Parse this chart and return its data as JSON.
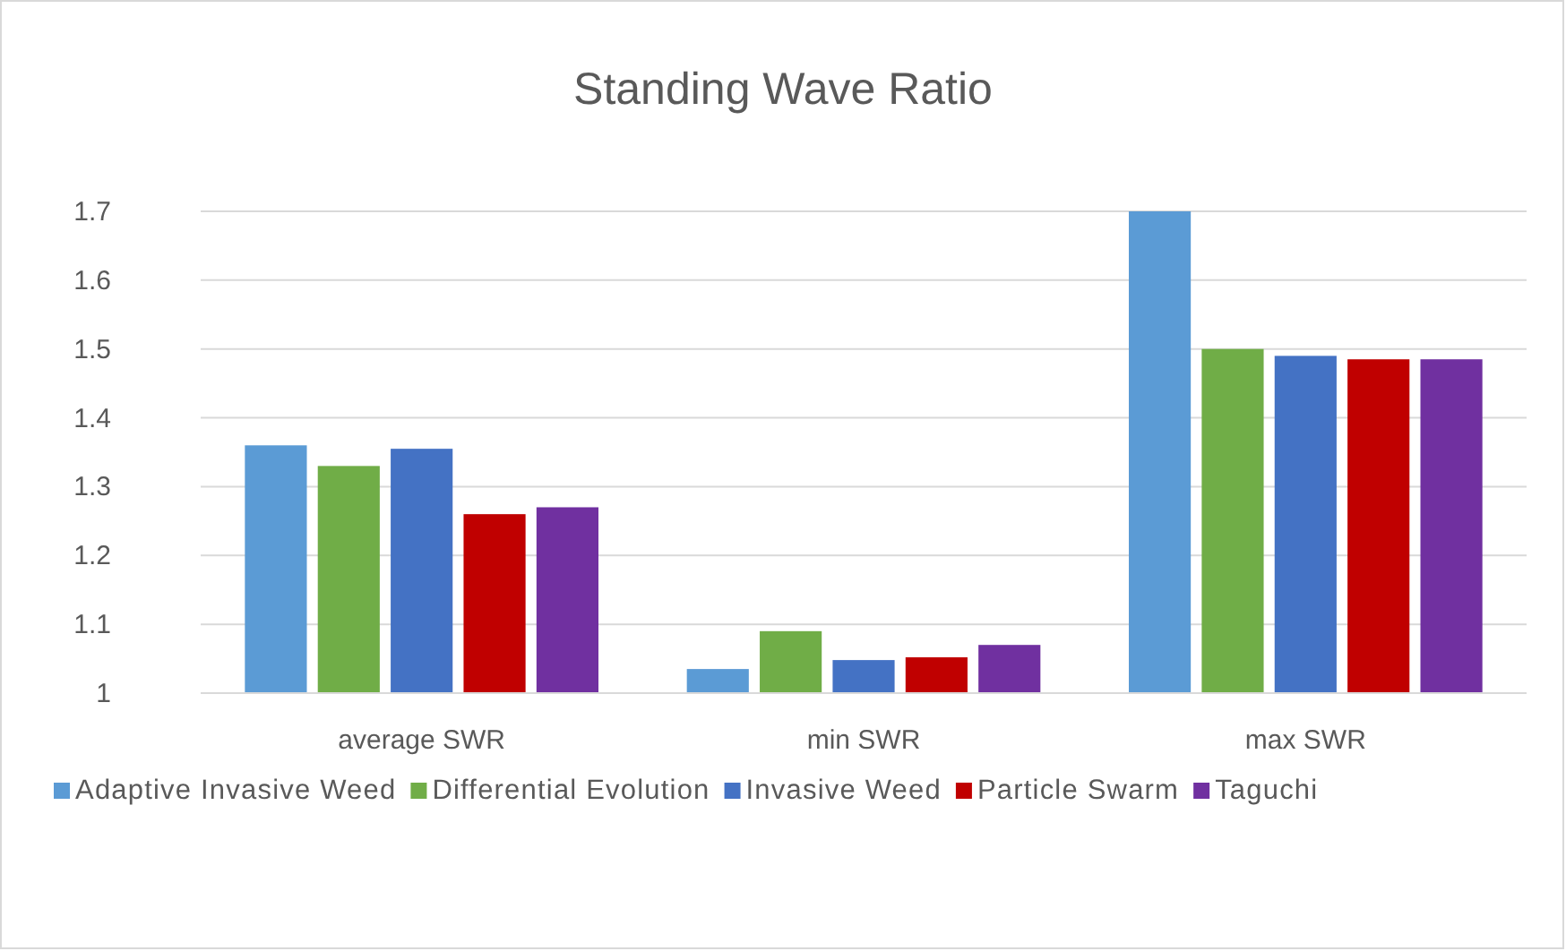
{
  "chart_data": {
    "type": "bar",
    "title": "Standing Wave Ratio",
    "categories": [
      "average SWR",
      "min SWR",
      "max SWR"
    ],
    "series": [
      {
        "name": "Adaptive Invasive Weed",
        "color": "#5b9bd5",
        "values": [
          1.36,
          1.035,
          1.7
        ]
      },
      {
        "name": "Differential Evolution",
        "color": "#70ad47",
        "values": [
          1.33,
          1.09,
          1.5
        ]
      },
      {
        "name": "Invasive Weed",
        "color": "#4472c4",
        "values": [
          1.355,
          1.048,
          1.49
        ]
      },
      {
        "name": "Particle Swarm",
        "color": "#c00000",
        "values": [
          1.26,
          1.052,
          1.485
        ]
      },
      {
        "name": "Taguchi",
        "color": "#7030a0",
        "values": [
          1.27,
          1.07,
          1.485
        ]
      }
    ],
    "ylim": [
      1,
      1.7
    ],
    "yticks": [
      1,
      1.1,
      1.2,
      1.3,
      1.4,
      1.5,
      1.6,
      1.7
    ],
    "grid": "y",
    "legend": "bottom"
  }
}
